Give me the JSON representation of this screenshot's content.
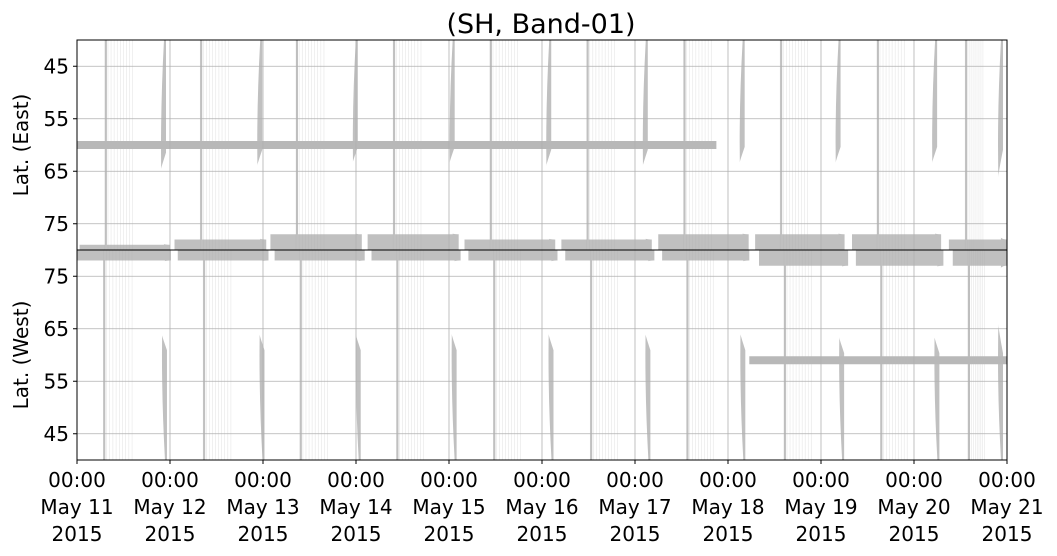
{
  "chart_data": {
    "type": "area",
    "title": "(SH, Band-01)",
    "x_ticks": [
      {
        "time": "00:00",
        "date": "May 11",
        "year": "2015"
      },
      {
        "time": "00:00",
        "date": "May 12",
        "year": "2015"
      },
      {
        "time": "00:00",
        "date": "May 13",
        "year": "2015"
      },
      {
        "time": "00:00",
        "date": "May 14",
        "year": "2015"
      },
      {
        "time": "00:00",
        "date": "May 15",
        "year": "2015"
      },
      {
        "time": "00:00",
        "date": "May 16",
        "year": "2015"
      },
      {
        "time": "00:00",
        "date": "May 17",
        "year": "2015"
      },
      {
        "time": "00:00",
        "date": "May 18",
        "year": "2015"
      },
      {
        "time": "00:00",
        "date": "May 19",
        "year": "2015"
      },
      {
        "time": "00:00",
        "date": "May 20",
        "year": "2015"
      },
      {
        "time": "00:00",
        "date": "May 21",
        "year": "2015"
      }
    ],
    "xlim": [
      "2015-05-11 00:00",
      "2015-05-21 00:00"
    ],
    "grid": true,
    "fill_color": "#bdbdbd",
    "panels": [
      {
        "name": "east",
        "ylabel": "Lat. (East)",
        "ylim": [
          40,
          80
        ],
        "inverted": true,
        "yticks": [
          "45",
          "55",
          "65",
          "75"
        ],
        "tick_values": [
          45,
          55,
          65,
          75
        ],
        "band_lat": 60,
        "band_range": [
          "2015-05-11 00:00",
          "2015-05-17 21:00"
        ],
        "lobes": [
          {
            "start": "2015-05-11 00:40",
            "end": "2015-05-12 00:00",
            "edge_lat": 79
          },
          {
            "start": "2015-05-12 01:10",
            "end": "2015-05-13 00:50",
            "edge_lat": 78
          },
          {
            "start": "2015-05-13 01:55",
            "end": "2015-05-14 01:30",
            "edge_lat": 77
          },
          {
            "start": "2015-05-14 03:00",
            "end": "2015-05-15 02:30",
            "edge_lat": 77
          },
          {
            "start": "2015-05-15 04:00",
            "end": "2015-05-16 03:25",
            "edge_lat": 78
          },
          {
            "start": "2015-05-16 05:00",
            "end": "2015-05-17 04:20",
            "edge_lat": 78
          },
          {
            "start": "2015-05-17 06:00",
            "end": "2015-05-18 05:20",
            "edge_lat": 77
          },
          {
            "start": "2015-05-18 07:00",
            "end": "2015-05-19 06:05",
            "edge_lat": 77
          },
          {
            "start": "2015-05-19 08:00",
            "end": "2015-05-20 07:00",
            "edge_lat": 77
          },
          {
            "start": "2015-05-20 09:00",
            "end": "2015-05-21 00:00",
            "edge_lat": 78
          }
        ]
      },
      {
        "name": "west",
        "ylabel": "Lat. (West)",
        "ylim": [
          40,
          80
        ],
        "inverted": false,
        "yticks": [
          "75",
          "65",
          "55",
          "45"
        ],
        "tick_values": [
          75,
          65,
          55,
          45
        ],
        "band_lat": 59,
        "band_range": [
          "2015-05-18 05:30",
          "2015-05-21 00:00"
        ],
        "lobes": [
          {
            "start": "2015-05-11 00:00",
            "end": "2015-05-12 00:15",
            "edge_lat": 78
          },
          {
            "start": "2015-05-12 02:00",
            "end": "2015-05-13 01:25",
            "edge_lat": 78
          },
          {
            "start": "2015-05-13 03:00",
            "end": "2015-05-14 02:15",
            "edge_lat": 78
          },
          {
            "start": "2015-05-14 04:00",
            "end": "2015-05-15 03:00",
            "edge_lat": 78
          },
          {
            "start": "2015-05-15 05:00",
            "end": "2015-05-16 04:00",
            "edge_lat": 78
          },
          {
            "start": "2015-05-16 06:00",
            "end": "2015-05-17 05:00",
            "edge_lat": 78
          },
          {
            "start": "2015-05-17 07:00",
            "end": "2015-05-18 05:30",
            "edge_lat": 78
          },
          {
            "start": "2015-05-18 08:00",
            "end": "2015-05-19 07:00",
            "edge_lat": 77
          },
          {
            "start": "2015-05-19 09:00",
            "end": "2015-05-20 07:35",
            "edge_lat": 77
          },
          {
            "start": "2015-05-20 10:00",
            "end": "2015-05-21 00:00",
            "edge_lat": 77
          }
        ]
      }
    ]
  }
}
